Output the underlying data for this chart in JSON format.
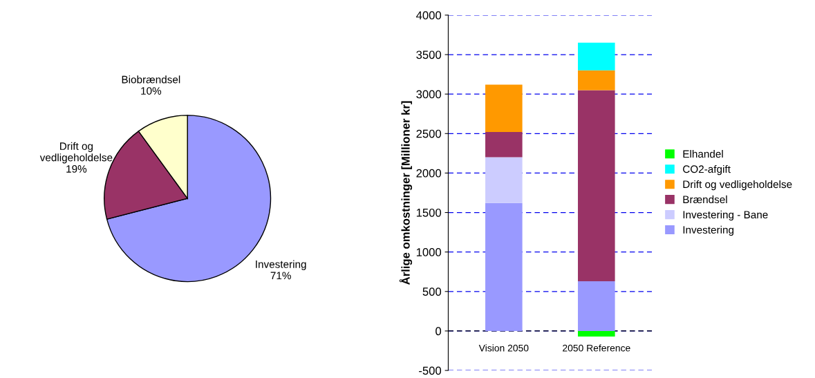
{
  "chart_data": [
    {
      "type": "pie",
      "categories": [
        "Investering",
        "Drift og\nvedligeholdelse",
        "Biobrændsel"
      ],
      "values": [
        71,
        19,
        10
      ],
      "colors": [
        "#9999ff",
        "#993366",
        "#ffffcc"
      ],
      "value_labels": [
        "71%",
        "19%",
        "10%"
      ]
    },
    {
      "type": "bar",
      "stacked": true,
      "ylabel": "Årlige omkostninger [Millioner kr]",
      "categories": [
        "Vision 2050",
        "2050 Reference"
      ],
      "ylim": [
        -500,
        4000
      ],
      "yticks": [
        -500,
        0,
        500,
        1000,
        1500,
        2000,
        2500,
        3000,
        3500,
        4000
      ],
      "grid": "y",
      "legend": "right",
      "ref_lines": [
        {
          "axis": "y",
          "value": 0,
          "color": "#000000",
          "line_style": "dashed"
        }
      ],
      "series": [
        {
          "name": "Investering",
          "color": "#9999ff",
          "values": [
            1620,
            630
          ]
        },
        {
          "name": "Investering - Bane",
          "color": "#ccccff",
          "values": [
            580,
            0
          ]
        },
        {
          "name": "Brændsel",
          "color": "#993366",
          "values": [
            320,
            2420
          ]
        },
        {
          "name": "Drift og vedligeholdelse",
          "color": "#ff9900",
          "values": [
            600,
            250
          ]
        },
        {
          "name": "CO2-afgift",
          "color": "#00ffff",
          "values": [
            0,
            350
          ]
        },
        {
          "name": "Elhandel",
          "color": "#00ff00",
          "values": [
            0,
            -70
          ]
        }
      ]
    }
  ]
}
